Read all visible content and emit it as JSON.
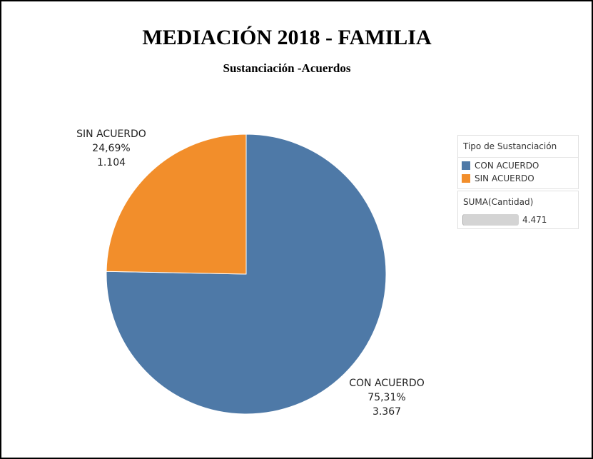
{
  "title": "MEDIACIÓN 2018 - FAMILIA",
  "subtitle": "Sustanciación -Acuerdos",
  "chart_data": {
    "type": "pie",
    "categories": [
      "CON ACUERDO",
      "SIN ACUERDO"
    ],
    "values": [
      3367,
      1104
    ],
    "value_labels": [
      "3.367",
      "1.104"
    ],
    "percent_labels": [
      "75,31%",
      "24,69%"
    ],
    "colors": [
      "#4e79a7",
      "#f28e2b"
    ],
    "legend": {
      "title": "Tipo de Sustanciación",
      "position": "right"
    },
    "size_legend": {
      "title": "SUMA(Cantidad)",
      "value": "4.471"
    }
  }
}
